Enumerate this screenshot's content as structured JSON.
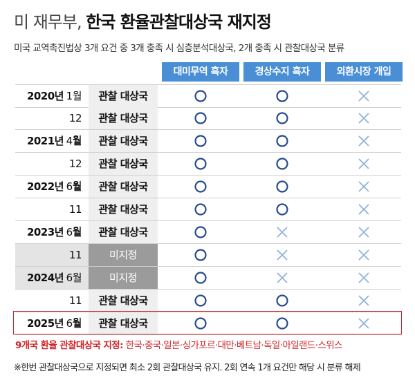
{
  "header": {
    "title_prefix": "미 재무부,",
    "title": "한국 환율관찰대상국 재지정",
    "subtitle": "미국 교역촉진법상 3개 요건 중 3개 충족 시 심층분석대상국, 2개 충족 시 관찰대상국 분류"
  },
  "table": {
    "columns": [
      "대미무역 흑자",
      "경상수지 흑자",
      "외환시장 개입"
    ],
    "rows": [
      {
        "year": "2020년",
        "month": "1월",
        "status": "관찰 대상국",
        "marks": [
          "O",
          "O",
          "X"
        ]
      },
      {
        "month": "12월",
        "status": "관찰 대상국",
        "marks": [
          "O",
          "O",
          "X"
        ]
      },
      {
        "year": "2021년",
        "month": "4월",
        "status": "관찰 대상국",
        "marks": [
          "O",
          "O",
          "X"
        ]
      },
      {
        "month": "12월",
        "status": "관찰 대상국",
        "marks": [
          "O",
          "O",
          "X"
        ]
      },
      {
        "year": "2022년",
        "month": "6월",
        "status": "관찰 대상국",
        "marks": [
          "O",
          "O",
          "X"
        ]
      },
      {
        "month": "11월",
        "status": "관찰 대상국",
        "marks": [
          "O",
          "O",
          "X"
        ]
      },
      {
        "year": "2023년",
        "month": "6월",
        "status": "관찰 대상국",
        "marks": [
          "O",
          "X",
          "X"
        ]
      },
      {
        "month": "11월",
        "status": "미지정",
        "marks": [
          "O",
          "X",
          "X"
        ]
      },
      {
        "year": "2024년",
        "month": "6월",
        "status": "미지정",
        "marks": [
          "O",
          "X",
          "X"
        ]
      },
      {
        "month": "11월",
        "status": "관찰 대상국",
        "marks": [
          "O",
          "O",
          "X"
        ]
      },
      {
        "year": "2025년",
        "month": "6월",
        "status": "관찰 대상국",
        "marks": [
          "O",
          "O",
          "X"
        ]
      }
    ]
  },
  "footer": {
    "highlight_label": "9개국 환율 관찰대상국 지정:",
    "highlight_text": "한국·중국·일본·싱가포르·대만·베트남·독일·아일랜드·스위스",
    "note": "※한번 관찰대상국으로 지정되면 최소 2회 관찰대상국 유지. 2회 연속 1개 요건만 해당 시 분류 해제"
  }
}
